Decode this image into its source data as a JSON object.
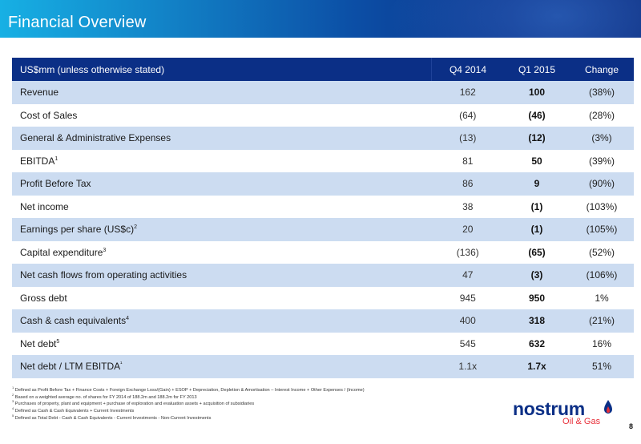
{
  "header": {
    "title": "Financial Overview"
  },
  "table": {
    "columns": [
      "US$mm (unless otherwise stated)",
      "Q4 2014",
      "Q1 2015",
      "Change"
    ],
    "rows": [
      {
        "label": "Revenue",
        "sup": "",
        "q4": "162",
        "q1": "100",
        "change": "(38%)"
      },
      {
        "label": "Cost of Sales",
        "sup": "",
        "q4": "(64)",
        "q1": "(46)",
        "change": "(28%)"
      },
      {
        "label": "General & Administrative Expenses",
        "sup": "",
        "q4": "(13)",
        "q1": "(12)",
        "change": "(3%)"
      },
      {
        "label": "EBITDA",
        "sup": "1",
        "q4": "81",
        "q1": "50",
        "change": "(39%)"
      },
      {
        "label": "Profit Before Tax",
        "sup": "",
        "q4": "86",
        "q1": "9",
        "change": "(90%)"
      },
      {
        "label": "Net income",
        "sup": "",
        "q4": "38",
        "q1": "(1)",
        "change": "(103%)"
      },
      {
        "label": "Earnings per share (US$c)",
        "sup": "2",
        "q4": "20",
        "q1": "(1)",
        "change": "(105%)"
      },
      {
        "label": "Capital expenditure",
        "sup": "3",
        "q4": "(136)",
        "q1": "(65)",
        "change": "(52%)"
      },
      {
        "label": "Net cash flows from operating activities",
        "sup": "",
        "q4": "47",
        "q1": "(3)",
        "change": "(106%)"
      },
      {
        "label": "Gross debt",
        "sup": "",
        "q4": "945",
        "q1": "950",
        "change": "1%"
      },
      {
        "label": "Cash & cash equivalents",
        "sup": "4",
        "q4": "400",
        "q1": "318",
        "change": "(21%)"
      },
      {
        "label": "Net debt",
        "sup": "5",
        "q4": "545",
        "q1": "632",
        "change": "16%"
      },
      {
        "label": "Net debt / LTM EBITDA",
        "sup": "¹",
        "q4": "1.1x",
        "q1": "1.7x",
        "change": "51%"
      }
    ]
  },
  "footnotes": [
    {
      "num": "1",
      "text": "Defined as Profit Before Tax + Finance Costs + Foreign Exchange Loss/(Gain) + ESOP + Depreciation, Depletion & Amortisation – Interest Income + Other Expenses / (Income)"
    },
    {
      "num": "2",
      "text": "Based on a weighted average no. of shares for FY 2014 of 188.2m and 188.2m for FY 2013"
    },
    {
      "num": "3",
      "text": "Purchases of property, plant and equipment + purchase of exploration and evaluation assets + acquisition of subsidiaries"
    },
    {
      "num": "4",
      "text": "Defined as Cash & Cash Equivalents + Current Investments"
    },
    {
      "num": "5",
      "text": "Defined as Total Debt - Cash & Cash Equivalents - Current Investments - Non-Current Investments"
    }
  ],
  "logo": {
    "word": "nostrum",
    "sub": "Oil & Gas"
  },
  "page_number": "8",
  "colors": {
    "header_dark": "#0b2f86",
    "header_light": "#17b0e4",
    "row_band": "#ccdcf1",
    "logo_blue": "#0b2f86",
    "logo_red": "#e8303a"
  }
}
